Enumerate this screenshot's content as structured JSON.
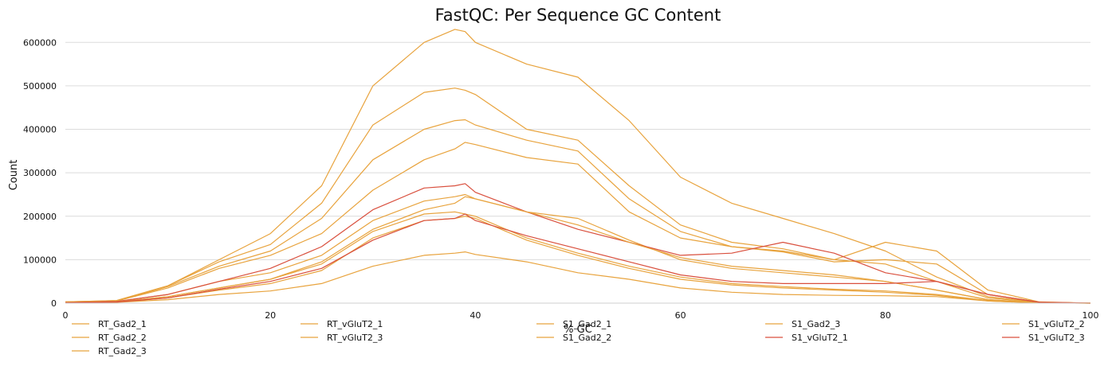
{
  "chart_data": {
    "type": "line",
    "title": "FastQC: Per Sequence GC Content",
    "xlabel": "% GC",
    "ylabel": "Count",
    "xlim": [
      0,
      100
    ],
    "ylim": [
      0,
      650000
    ],
    "x_ticks": [
      0,
      20,
      40,
      60,
      80,
      100
    ],
    "y_ticks": [
      0,
      100000,
      200000,
      300000,
      400000,
      500000,
      600000
    ],
    "grid": "horizontal",
    "legend_position": "bottom",
    "x": [
      0,
      5,
      10,
      15,
      20,
      25,
      30,
      35,
      38,
      39,
      40,
      45,
      50,
      55,
      60,
      65,
      70,
      75,
      80,
      85,
      90,
      95,
      100
    ],
    "series": [
      {
        "name": "RT_Gad2_1",
        "color": "#e8a33d",
        "values": [
          3000,
          6000,
          40000,
          100000,
          160000,
          270000,
          500000,
          600000,
          630000,
          625000,
          600000,
          550000,
          520000,
          420000,
          290000,
          230000,
          195000,
          160000,
          120000,
          60000,
          15000,
          2000,
          0
        ]
      },
      {
        "name": "RT_Gad2_2",
        "color": "#e8a33d",
        "values": [
          3000,
          6000,
          40000,
          95000,
          135000,
          230000,
          410000,
          485000,
          495000,
          490000,
          480000,
          400000,
          375000,
          270000,
          180000,
          140000,
          125000,
          100000,
          90000,
          50000,
          12000,
          1500,
          0
        ]
      },
      {
        "name": "RT_Gad2_3",
        "color": "#e8a33d",
        "values": [
          2000,
          5000,
          35000,
          80000,
          110000,
          160000,
          260000,
          330000,
          355000,
          370000,
          365000,
          335000,
          320000,
          210000,
          150000,
          130000,
          120000,
          100000,
          140000,
          120000,
          30000,
          3000,
          0
        ]
      },
      {
        "name": "RT_vGluT2_1",
        "color": "#e8a33d",
        "values": [
          2000,
          5000,
          38000,
          85000,
          120000,
          195000,
          330000,
          400000,
          420000,
          422000,
          410000,
          375000,
          350000,
          240000,
          165000,
          130000,
          118000,
          95000,
          100000,
          90000,
          20000,
          2500,
          0
        ]
      },
      {
        "name": "RT_vGluT2_3",
        "color": "#e8a33d",
        "values": [
          1500,
          4000,
          20000,
          50000,
          70000,
          110000,
          190000,
          235000,
          245000,
          250000,
          240000,
          210000,
          195000,
          145000,
          100000,
          80000,
          70000,
          60000,
          50000,
          30000,
          8000,
          1000,
          0
        ]
      },
      {
        "name": "S1_Gad2_1",
        "color": "#e8a33d",
        "values": [
          1000,
          3000,
          15000,
          35000,
          55000,
          90000,
          165000,
          205000,
          210000,
          205000,
          200000,
          150000,
          115000,
          85000,
          60000,
          45000,
          38000,
          32000,
          28000,
          20000,
          6000,
          800,
          0
        ]
      },
      {
        "name": "S1_Gad2_2",
        "color": "#e8a33d",
        "values": [
          1000,
          2500,
          12000,
          30000,
          45000,
          75000,
          150000,
          190000,
          195000,
          200000,
          195000,
          145000,
          110000,
          80000,
          55000,
          42000,
          35000,
          30000,
          25000,
          18000,
          5000,
          600,
          0
        ]
      },
      {
        "name": "S1_Gad2_3",
        "color": "#e8a33d",
        "values": [
          800,
          2000,
          8000,
          20000,
          28000,
          45000,
          85000,
          110000,
          115000,
          118000,
          112000,
          95000,
          70000,
          55000,
          35000,
          25000,
          20000,
          18000,
          17000,
          15000,
          5000,
          500,
          0
        ]
      },
      {
        "name": "S1_vGluT2_1",
        "color": "#d94f3d",
        "values": [
          1500,
          4000,
          20000,
          50000,
          80000,
          130000,
          215000,
          265000,
          270000,
          275000,
          255000,
          210000,
          170000,
          140000,
          110000,
          115000,
          140000,
          115000,
          70000,
          50000,
          20000,
          2000,
          0
        ]
      },
      {
        "name": "S1_vGluT2_2",
        "color": "#e8a33d",
        "values": [
          1200,
          3000,
          15000,
          35000,
          55000,
          95000,
          170000,
          215000,
          230000,
          245000,
          240000,
          210000,
          180000,
          140000,
          105000,
          85000,
          75000,
          65000,
          50000,
          30000,
          8000,
          800,
          0
        ]
      },
      {
        "name": "S1_vGluT2_3",
        "color": "#d94f3d",
        "values": [
          1000,
          2500,
          12000,
          32000,
          50000,
          80000,
          145000,
          190000,
          195000,
          205000,
          190000,
          155000,
          125000,
          95000,
          65000,
          50000,
          45000,
          45000,
          45000,
          50000,
          20000,
          2000,
          0
        ]
      }
    ]
  }
}
